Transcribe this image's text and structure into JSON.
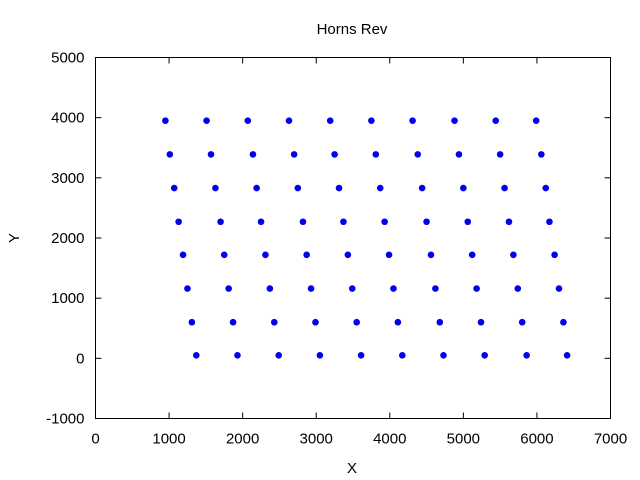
{
  "chart_data": {
    "type": "scatter",
    "title": "Horns Rev",
    "xlabel": "X",
    "ylabel": "Y",
    "xlim": [
      0,
      7000
    ],
    "ylim": [
      -1000,
      5000
    ],
    "xticks": [
      0,
      1000,
      2000,
      3000,
      4000,
      5000,
      6000,
      7000
    ],
    "yticks": [
      -1000,
      0,
      1000,
      2000,
      3000,
      4000,
      5000
    ],
    "xtick_labels": [
      "0",
      "1000",
      "2000",
      "3000",
      "4000",
      "5000",
      "6000",
      "7000"
    ],
    "ytick_labels": [
      "-1000",
      "0",
      "1000",
      "2000",
      "3000",
      "4000",
      "5000"
    ],
    "grid": false,
    "point_color": "#0000ee",
    "series": [
      {
        "points": [
          [
            950,
            3950
          ],
          [
            1510,
            3950
          ],
          [
            2070,
            3950
          ],
          [
            2630,
            3950
          ],
          [
            3190,
            3950
          ],
          [
            3750,
            3950
          ],
          [
            4310,
            3950
          ],
          [
            4880,
            3950
          ],
          [
            5440,
            3950
          ],
          [
            5990,
            3950
          ],
          [
            1010,
            3390
          ],
          [
            1570,
            3390
          ],
          [
            2140,
            3390
          ],
          [
            2700,
            3390
          ],
          [
            3250,
            3390
          ],
          [
            3810,
            3390
          ],
          [
            4380,
            3390
          ],
          [
            4940,
            3390
          ],
          [
            5500,
            3390
          ],
          [
            6060,
            3390
          ],
          [
            1070,
            2830
          ],
          [
            1630,
            2830
          ],
          [
            2190,
            2830
          ],
          [
            2750,
            2830
          ],
          [
            3310,
            2830
          ],
          [
            3870,
            2830
          ],
          [
            4440,
            2830
          ],
          [
            5000,
            2830
          ],
          [
            5560,
            2830
          ],
          [
            6120,
            2830
          ],
          [
            1130,
            2270
          ],
          [
            1700,
            2270
          ],
          [
            2250,
            2270
          ],
          [
            2820,
            2270
          ],
          [
            3370,
            2270
          ],
          [
            3930,
            2270
          ],
          [
            4500,
            2270
          ],
          [
            5060,
            2270
          ],
          [
            5620,
            2270
          ],
          [
            6170,
            2270
          ],
          [
            1190,
            1720
          ],
          [
            1750,
            1720
          ],
          [
            2310,
            1720
          ],
          [
            2870,
            1720
          ],
          [
            3430,
            1720
          ],
          [
            3990,
            1720
          ],
          [
            4560,
            1720
          ],
          [
            5120,
            1720
          ],
          [
            5680,
            1720
          ],
          [
            6240,
            1720
          ],
          [
            1250,
            1160
          ],
          [
            1810,
            1160
          ],
          [
            2370,
            1160
          ],
          [
            2930,
            1160
          ],
          [
            3490,
            1160
          ],
          [
            4050,
            1160
          ],
          [
            4620,
            1160
          ],
          [
            5180,
            1160
          ],
          [
            5740,
            1160
          ],
          [
            6300,
            1160
          ],
          [
            1310,
            600
          ],
          [
            1870,
            600
          ],
          [
            2430,
            600
          ],
          [
            2990,
            600
          ],
          [
            3550,
            600
          ],
          [
            4110,
            600
          ],
          [
            4680,
            600
          ],
          [
            5240,
            600
          ],
          [
            5800,
            600
          ],
          [
            6360,
            600
          ],
          [
            1370,
            50
          ],
          [
            1930,
            50
          ],
          [
            2490,
            50
          ],
          [
            3050,
            50
          ],
          [
            3610,
            50
          ],
          [
            4170,
            50
          ],
          [
            4730,
            50
          ],
          [
            5290,
            50
          ],
          [
            5860,
            50
          ],
          [
            6410,
            50
          ]
        ]
      }
    ]
  }
}
